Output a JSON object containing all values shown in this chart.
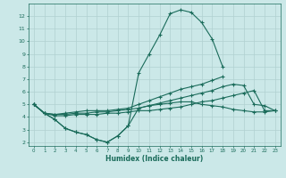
{
  "xlabel": "Humidex (Indice chaleur)",
  "background_color": "#cbe8e8",
  "grid_color": "#b0d0d0",
  "line_color": "#1a6b5a",
  "x_all": [
    0,
    1,
    2,
    3,
    4,
    5,
    6,
    7,
    8,
    9,
    10,
    11,
    12,
    13,
    14,
    15,
    16,
    17,
    18,
    19,
    20,
    21,
    22,
    23
  ],
  "line_peak": [
    5.0,
    4.3,
    3.8,
    3.1,
    2.8,
    2.6,
    2.2,
    2.0,
    2.5,
    3.3,
    7.5,
    9.0,
    10.5,
    12.2,
    12.5,
    12.3,
    11.5,
    10.2,
    8.0,
    null,
    null,
    null,
    null,
    null
  ],
  "line_dip": [
    5.0,
    4.3,
    3.8,
    3.1,
    2.8,
    2.6,
    2.2,
    2.0,
    2.5,
    3.3,
    4.7,
    4.9,
    5.0,
    5.1,
    5.2,
    5.2,
    5.0,
    4.9,
    4.8,
    4.6,
    4.5,
    4.4,
    4.4,
    4.5
  ],
  "line_high": [
    5.0,
    4.3,
    4.2,
    4.3,
    4.4,
    4.5,
    4.5,
    4.5,
    4.6,
    4.7,
    5.0,
    5.3,
    5.6,
    5.9,
    6.2,
    6.4,
    6.6,
    6.9,
    7.2,
    null,
    null,
    null,
    null,
    null
  ],
  "line_mid": [
    5.0,
    4.3,
    4.2,
    4.2,
    4.3,
    4.3,
    4.4,
    4.4,
    4.5,
    4.6,
    4.7,
    4.9,
    5.1,
    5.3,
    5.5,
    5.7,
    5.9,
    6.1,
    6.4,
    6.6,
    6.5,
    5.0,
    4.9,
    4.5
  ],
  "line_flat": [
    5.0,
    4.3,
    4.1,
    4.1,
    4.2,
    4.2,
    4.2,
    4.3,
    4.3,
    4.4,
    4.5,
    4.5,
    4.6,
    4.7,
    4.8,
    5.0,
    5.2,
    5.3,
    5.5,
    5.7,
    5.9,
    6.1,
    4.5,
    4.5
  ],
  "ylim": [
    1.7,
    13
  ],
  "xlim": [
    -0.5,
    23.5
  ],
  "yticks": [
    2,
    3,
    4,
    5,
    6,
    7,
    8,
    9,
    10,
    11,
    12
  ],
  "xticks": [
    0,
    1,
    2,
    3,
    4,
    5,
    6,
    7,
    8,
    9,
    10,
    11,
    12,
    13,
    14,
    15,
    16,
    17,
    18,
    19,
    20,
    21,
    22,
    23
  ]
}
